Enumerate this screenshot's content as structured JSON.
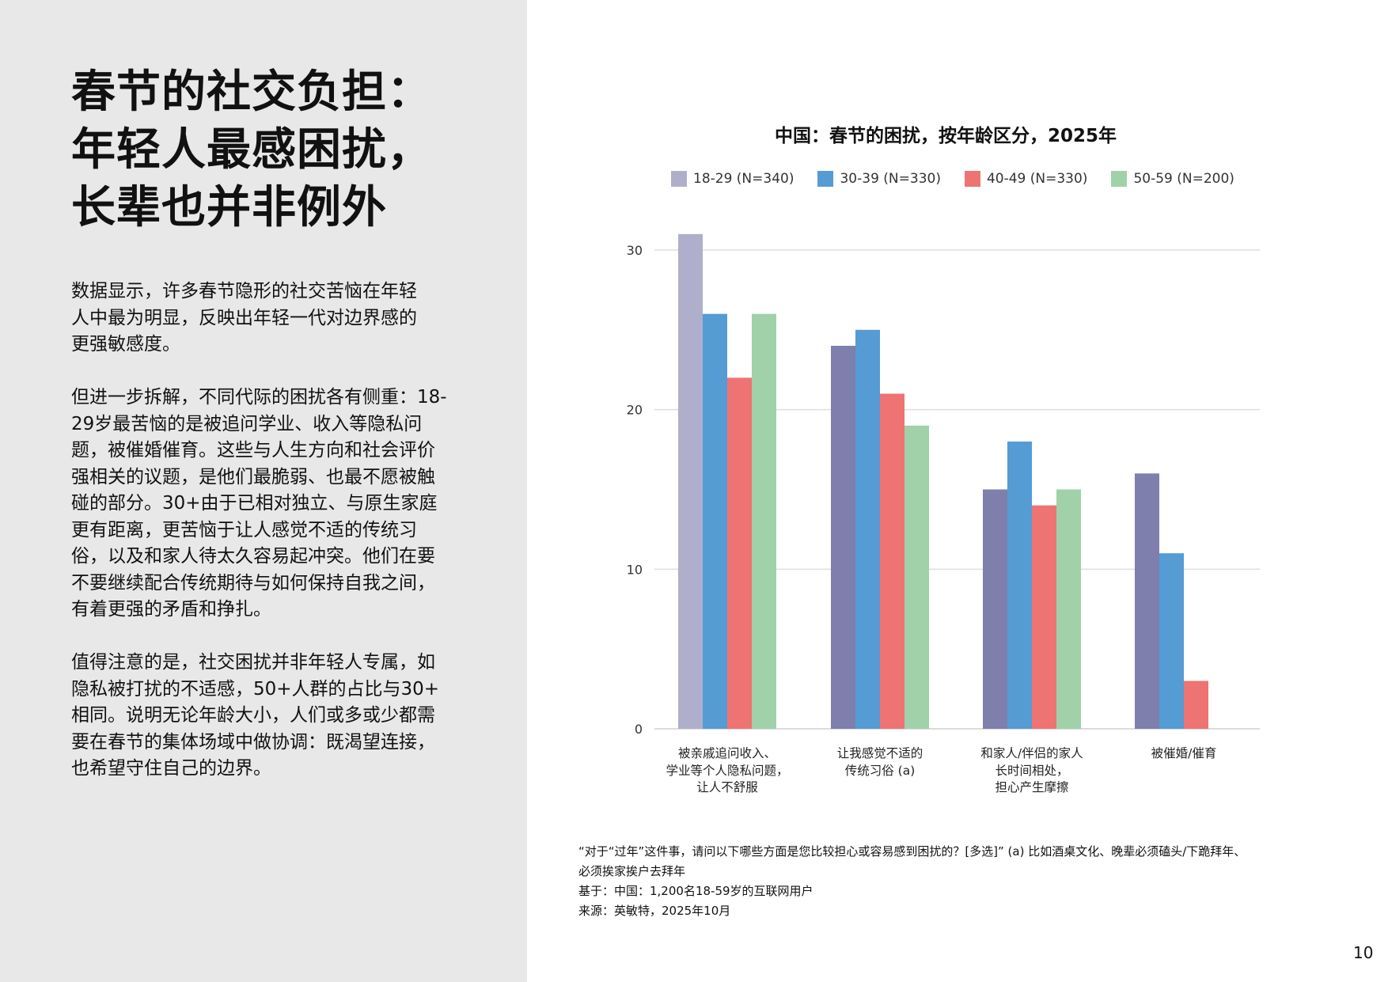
{
  "left": {
    "title_lines": [
      "春节的社交负担：",
      "年轻人最感困扰，",
      "长辈也并非例外"
    ],
    "paragraphs": [
      [
        "数据显示，许多春节隐形的社交苦恼在年轻",
        "人中最为明显，反映出年轻一代对边界感的",
        "更强敏感度。"
      ],
      [
        "但进一步拆解，不同代际的困扰各有侧重：18-",
        "29岁最苦恼的是被追问学业、收入等隐私问",
        "题，被催婚催育。这些与人生方向和社会评价",
        "强相关的议题，是他们最脆弱、也最不愿被触",
        "碰的部分。30+由于已相对独立、与原生家庭",
        "更有距离，更苦恼于让人感觉不适的传统习",
        "俗，以及和家人待太久容易起冲突。他们在要",
        "不要继续配合传统期待与如何保持自我之间，",
        "有着更强的矛盾和挣扎。"
      ],
      [
        "值得注意的是，社交困扰并非年轻人专属，如",
        "隐私被打扰的不适感，50+人群的占比与30+",
        "相同。说明无论年龄大小，人们或多或少都需",
        "要在春节的集体场域中做协调：既渴望连接，",
        "也希望守住自己的边界。"
      ]
    ]
  },
  "chart_data": {
    "type": "bar",
    "title": "中国：春节的困扰，按年龄区分，2025年",
    "categories": [
      [
        "被亲戚追问收入、",
        "学业等个人隐私问题，",
        "让人不舒服"
      ],
      [
        "让我感觉不适的",
        "传统习俗 (a)"
      ],
      [
        "和家人/伴侣的家人",
        "长时间相处，",
        "担心产生摩擦"
      ],
      [
        "被催婚/催育"
      ]
    ],
    "series": [
      {
        "name": "18-29 (N=340)",
        "color": "#afafcc",
        "bar_color": "#7f7fad",
        "values": [
          31,
          24,
          15,
          16
        ]
      },
      {
        "name": "30-39 (N=330)",
        "color": "#559bd4",
        "values": [
          26,
          25,
          18,
          11
        ]
      },
      {
        "name": "40-49 (N=330)",
        "color": "#ee7373",
        "values": [
          22,
          21,
          14,
          3
        ]
      },
      {
        "name": "50-59 (N=200)",
        "color": "#a0d1a9",
        "values": [
          26,
          19,
          15,
          null
        ]
      }
    ],
    "yticks": [
      0,
      10,
      20,
      30
    ],
    "ylim": [
      0,
      30
    ],
    "grid": true,
    "legend": "top"
  },
  "notes": [
    "“对于“过年”这件事，请问以下哪些方面是您比较担心或容易感到困扰的？[多选]” (a) 比如酒桌文化、晚辈必须磕头/下跪拜年、",
    "必须挨家挨户去拜年",
    "基于：中国：1,200名18-59岁的互联网用户",
    "来源：英敏特，2025年10月"
  ],
  "page_number": "10"
}
